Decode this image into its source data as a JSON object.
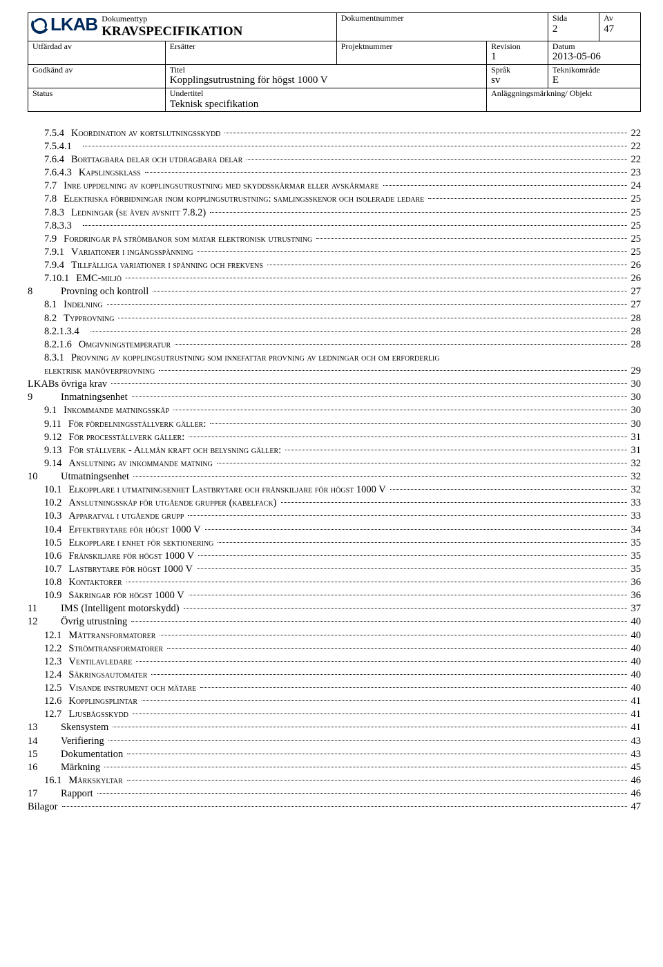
{
  "header": {
    "rows": [
      [
        {
          "label": "Dokumenttyp",
          "value": "KRAVSPECIFIKATION",
          "big": true,
          "colspan": 3
        },
        {
          "label": "Dokumentnummer",
          "value": "",
          "colspan": 2
        },
        {
          "label": "Sida",
          "value": "2"
        },
        {
          "label": "Av",
          "value": "47"
        }
      ],
      [
        {
          "label": "Utfärdad av",
          "value": "",
          "colspan": 2
        },
        {
          "label": "Ersätter",
          "value": ""
        },
        {
          "label": "Projektnummer",
          "value": ""
        },
        {
          "label": "Revision",
          "value": "1"
        },
        {
          "label": "Datum",
          "value": "2013-05-06",
          "colspan": 2
        }
      ],
      [
        {
          "label": "Godkänd av",
          "value": "",
          "colspan": 2
        },
        {
          "label": "Titel",
          "value": "Kopplingsutrustning för högst 1000 V",
          "colspan": 2
        },
        {
          "label": "Språk",
          "value": "sv"
        },
        {
          "label": "Teknikområde",
          "value": "E",
          "colspan": 2
        }
      ],
      [
        {
          "label": "Status",
          "value": "",
          "colspan": 2
        },
        {
          "label": "Undertitel",
          "value": "Teknisk specifikation",
          "colspan": 2
        },
        {
          "label": "Anläggningsmärkning/ Objekt",
          "value": "",
          "colspan": 3
        }
      ]
    ]
  },
  "toc": [
    {
      "num": "7.5.4",
      "title": "Koordination av kortslutningsskydd",
      "page": "22",
      "indent": 1,
      "sc": true
    },
    {
      "num": "7.5.4.1",
      "title": "",
      "page": "22",
      "indent": 1,
      "sc": false
    },
    {
      "num": "7.6.4",
      "title": "Borttagbara delar och utdragbara delar",
      "page": "22",
      "indent": 1,
      "sc": true
    },
    {
      "num": "7.6.4.3",
      "title": "Kapslingsklass",
      "page": "23",
      "indent": 1,
      "sc": true
    },
    {
      "num": "7.7",
      "title": "Inre uppdelning av kopplingsutrustning med skyddsskärmar eller avskärmare",
      "page": "24",
      "indent": 1,
      "sc": true
    },
    {
      "num": "7.8",
      "title": "Elektriska förbidningar inom kopplingsutrustning: samlingsskenor och isolerade ledare",
      "page": "25",
      "indent": 1,
      "sc": true
    },
    {
      "num": "7.8.3",
      "title": "Ledningar (se även avsnitt 7.8.2)",
      "page": "25",
      "indent": 1,
      "sc": true
    },
    {
      "num": "7.8.3.3",
      "title": "",
      "page": "25",
      "indent": 1,
      "sc": false
    },
    {
      "num": "7.9",
      "title": "Fordringar på strömbanor som matar elektronisk utrustning",
      "page": "25",
      "indent": 1,
      "sc": true
    },
    {
      "num": "7.9.1",
      "title": "Variationer i ingångsspänning",
      "page": "25",
      "indent": 1,
      "sc": true
    },
    {
      "num": "7.9.4",
      "title": "Tillfälliga variationer i spänning och frekvens",
      "page": "26",
      "indent": 1,
      "sc": true
    },
    {
      "num": "7.10.1",
      "title": "EMC-miljö",
      "page": "26",
      "indent": 1,
      "sc": true
    },
    {
      "num": "8",
      "title": "Provning och kontroll",
      "page": "27",
      "indent": 0,
      "sc": false
    },
    {
      "num": "8.1",
      "title": "Indelning",
      "page": "27",
      "indent": 1,
      "sc": true
    },
    {
      "num": "8.2",
      "title": "Typprovning",
      "page": "28",
      "indent": 1,
      "sc": true
    },
    {
      "num": "8.2.1.3.4",
      "title": "",
      "page": "28",
      "indent": 1,
      "sc": false
    },
    {
      "num": "8.2.1.6",
      "title": "Omgivningstemperatur",
      "page": "28",
      "indent": 1,
      "sc": true
    },
    {
      "num": "8.3.1",
      "title": "Provning av kopplingsutrustning som innefattar provning av ledningar och om erforderlig elektrisk manöverprovning",
      "page": "29",
      "indent": 1,
      "sc": true,
      "wrap": true
    },
    {
      "num": "",
      "title": "LKABs övriga krav",
      "page": "30",
      "indent": 0,
      "sc": false
    },
    {
      "num": "9",
      "title": "Inmatningsenhet",
      "page": "30",
      "indent": 0,
      "sc": false
    },
    {
      "num": "9.1",
      "title": "Inkommande matningsskåp",
      "page": "30",
      "indent": 1,
      "sc": true
    },
    {
      "num": "9.11",
      "title": "För fördelningsställverk gäller:",
      "page": "30",
      "indent": 1,
      "sc": true
    },
    {
      "num": "9.12",
      "title": "För procesställverk gäller:",
      "page": "31",
      "indent": 1,
      "sc": true
    },
    {
      "num": "9.13",
      "title": "För ställverk - Allmän kraft och belysning gäller:",
      "page": "31",
      "indent": 1,
      "sc": true
    },
    {
      "num": "9.14",
      "title": "Anslutning av inkommande matning",
      "page": "32",
      "indent": 1,
      "sc": true
    },
    {
      "num": "10",
      "title": "Utmatningsenhet",
      "page": "32",
      "indent": 0,
      "sc": false
    },
    {
      "num": "10.1",
      "title": "Elkopplare i utmatningsenhet Lastbrytare och frånskiljare för högst 1000 V",
      "page": "32",
      "indent": 1,
      "sc": true
    },
    {
      "num": "10.2",
      "title": "Anslutningsskåp för utgående grupper (kabelfack)",
      "page": "33",
      "indent": 1,
      "sc": true
    },
    {
      "num": "10.3",
      "title": "Apparatval i utgående grupp",
      "page": "33",
      "indent": 1,
      "sc": true
    },
    {
      "num": "10.4",
      "title": "Effektbrytare för högst 1000 V",
      "page": "34",
      "indent": 1,
      "sc": true
    },
    {
      "num": "10.5",
      "title": "Elkopplare i enhet för sektionering",
      "page": "35",
      "indent": 1,
      "sc": true
    },
    {
      "num": "10.6",
      "title": "Frånskiljare för högst 1000 V",
      "page": "35",
      "indent": 1,
      "sc": true
    },
    {
      "num": "10.7",
      "title": "Lastbrytare för högst 1000 V",
      "page": "35",
      "indent": 1,
      "sc": true
    },
    {
      "num": "10.8",
      "title": "Kontaktorer",
      "page": "36",
      "indent": 1,
      "sc": true
    },
    {
      "num": "10.9",
      "title": "Säkringar för högst 1000 V",
      "page": "36",
      "indent": 1,
      "sc": true
    },
    {
      "num": "11",
      "title": "IMS (Intelligent motorskydd)",
      "page": "37",
      "indent": 0,
      "sc": false
    },
    {
      "num": "12",
      "title": "Övrig utrustning",
      "page": "40",
      "indent": 0,
      "sc": false
    },
    {
      "num": "12.1",
      "title": "Mättransformatorer",
      "page": "40",
      "indent": 1,
      "sc": true
    },
    {
      "num": "12.2",
      "title": "Strömtransformatorer",
      "page": "40",
      "indent": 1,
      "sc": true
    },
    {
      "num": "12.3",
      "title": "Ventilavledare",
      "page": "40",
      "indent": 1,
      "sc": true
    },
    {
      "num": "12.4",
      "title": "Säkringsautomater",
      "page": "40",
      "indent": 1,
      "sc": true
    },
    {
      "num": "12.5",
      "title": "Visande instrument och mätare",
      "page": "40",
      "indent": 1,
      "sc": true
    },
    {
      "num": "12.6",
      "title": "Kopplingsplintar",
      "page": "41",
      "indent": 1,
      "sc": true
    },
    {
      "num": "12.7",
      "title": "Ljusbågsskydd",
      "page": "41",
      "indent": 1,
      "sc": true
    },
    {
      "num": "13",
      "title": "Skensystem",
      "page": "41",
      "indent": 0,
      "sc": false
    },
    {
      "num": "14",
      "title": "Verifiering",
      "page": "43",
      "indent": 0,
      "sc": false
    },
    {
      "num": "15",
      "title": "Dokumentation",
      "page": "43",
      "indent": 0,
      "sc": false
    },
    {
      "num": "16",
      "title": "Märkning",
      "page": "45",
      "indent": 0,
      "sc": false
    },
    {
      "num": "16.1",
      "title": "Märkskyltar",
      "page": "46",
      "indent": 1,
      "sc": true
    },
    {
      "num": "17",
      "title": "Rapport",
      "page": "46",
      "indent": 0,
      "sc": false
    },
    {
      "num": "",
      "title": "Bilagor",
      "page": "47",
      "indent": 0,
      "sc": false
    }
  ]
}
